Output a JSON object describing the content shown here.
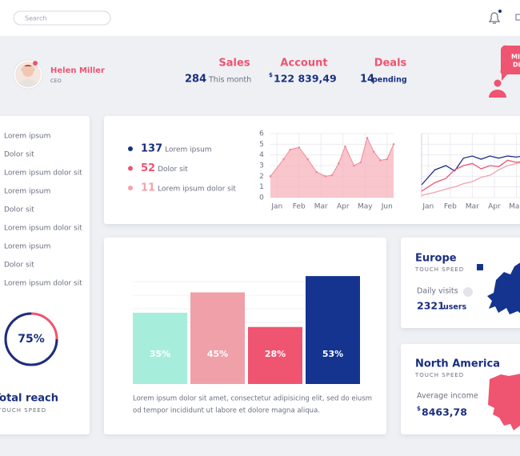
{
  "topbar": {
    "search_placeholder": "Search"
  },
  "profile": {
    "name": "Helen Miller",
    "role": "CEO"
  },
  "stats": [
    {
      "title": "Sales",
      "value": "284",
      "note": "This month"
    },
    {
      "title": "Account",
      "currency": "$",
      "value": "122 839,49"
    },
    {
      "title": "Deals",
      "value": "14",
      "note": "pending"
    }
  ],
  "promo": {
    "lines": [
      "MI",
      "Di"
    ]
  },
  "sidebar": {
    "items": [
      "Lorem ipsum",
      "Dolor sit",
      "Lorem ipsum dolor sit",
      "Lorem ipsum",
      "Dolor sit",
      "Lorem ipsum dolor sit",
      "Lorem ipsum",
      "Dolor sit",
      "Lorem ipsum dolor sit"
    ],
    "donut": {
      "value": 75,
      "label": "75%",
      "color": "#1b2f80",
      "rest_color": "#ef5470"
    },
    "title": "Total reach",
    "subtitle": "TOUCH SPEED"
  },
  "legend": [
    {
      "value": 137,
      "label": "Lorem ipsum",
      "color": "#1b2f80"
    },
    {
      "value": 52,
      "label": "Dolor sit",
      "color": "#ef5470"
    },
    {
      "value": 11,
      "label": "Lorem ipsum dolor sit",
      "color": "#f2a3ab"
    }
  ],
  "area_chart": {
    "type": "area",
    "color": "#f5b3bb",
    "line_color": "#ef8a98",
    "x": [
      -0.3,
      0.3,
      0.6,
      1.0,
      1.4,
      1.8,
      2.2,
      2.5,
      2.8,
      3.1,
      3.5,
      3.8,
      4.1,
      4.4,
      4.7,
      5.0,
      5.3
    ],
    "values": [
      2.0,
      3.6,
      4.5,
      4.7,
      3.6,
      2.4,
      2.0,
      2.1,
      3.2,
      4.8,
      3.0,
      3.3,
      5.6,
      4.3,
      3.5,
      3.6,
      5.0
    ],
    "xlim": [
      -0.3,
      5.3
    ],
    "xticks": [
      {
        "value": 0,
        "label": "Jan"
      },
      {
        "value": 1,
        "label": "Feb"
      },
      {
        "value": 2,
        "label": "Mar"
      },
      {
        "value": 3,
        "label": "Apr"
      },
      {
        "value": 4,
        "label": "May"
      },
      {
        "value": 5,
        "label": "Jun"
      }
    ],
    "ylim": [
      0,
      6
    ],
    "yticks": [
      0,
      1,
      2,
      3,
      4,
      5,
      6
    ],
    "grid": true
  },
  "line_chart": {
    "type": "line",
    "x": [
      -0.3,
      0.3,
      0.8,
      1.2,
      1.6,
      2.0,
      2.4,
      2.8,
      3.2,
      3.6,
      4.0,
      4.3
    ],
    "xlim": [
      -0.3,
      4.2
    ],
    "ylim": [
      0,
      6
    ],
    "xticks": [
      {
        "value": 0,
        "label": "Jan"
      },
      {
        "value": 1,
        "label": "Feb"
      },
      {
        "value": 2,
        "label": "Mar"
      },
      {
        "value": 3,
        "label": "Apr"
      },
      {
        "value": 4,
        "label": "May"
      }
    ],
    "series": [
      {
        "color": "#1b2f80",
        "values": [
          1.2,
          2.6,
          3.0,
          2.5,
          3.7,
          3.9,
          3.6,
          3.9,
          3.7,
          3.9,
          3.8,
          3.9
        ]
      },
      {
        "color": "#ef5470",
        "values": [
          0.6,
          1.4,
          1.8,
          2.6,
          3.0,
          3.2,
          2.7,
          3.0,
          2.9,
          3.5,
          3.3,
          3.4
        ]
      },
      {
        "color": "#f2a3ab",
        "values": [
          0.2,
          0.5,
          0.8,
          1.0,
          1.3,
          1.5,
          1.9,
          2.1,
          2.6,
          3.0,
          3.2,
          3.3
        ]
      }
    ]
  },
  "bar_chart": {
    "type": "bar",
    "values": [
      35,
      45,
      28,
      53
    ],
    "value_labels": [
      "35%",
      "45%",
      "28%",
      "53%"
    ],
    "colors": [
      "#a6eedb",
      "#f0a0a8",
      "#ef5470",
      "#14348f"
    ],
    "ylim": [
      0,
      55
    ],
    "caption": [
      "Lorem ipsum dolor sit amet, consectetur adipisicing elit, sed do eiusm",
      "od tempor incididunt ut labore et dolore magna aliqua."
    ]
  },
  "regions": [
    {
      "name": "Europe",
      "subtitle": "TOUCH SPEED",
      "metric": "Daily visits",
      "value": "2321",
      "unit": "users"
    },
    {
      "name": "North America",
      "subtitle": "TOUCH SPEED",
      "metric": "Average income",
      "currency": "$",
      "value": "8463,78"
    }
  ]
}
